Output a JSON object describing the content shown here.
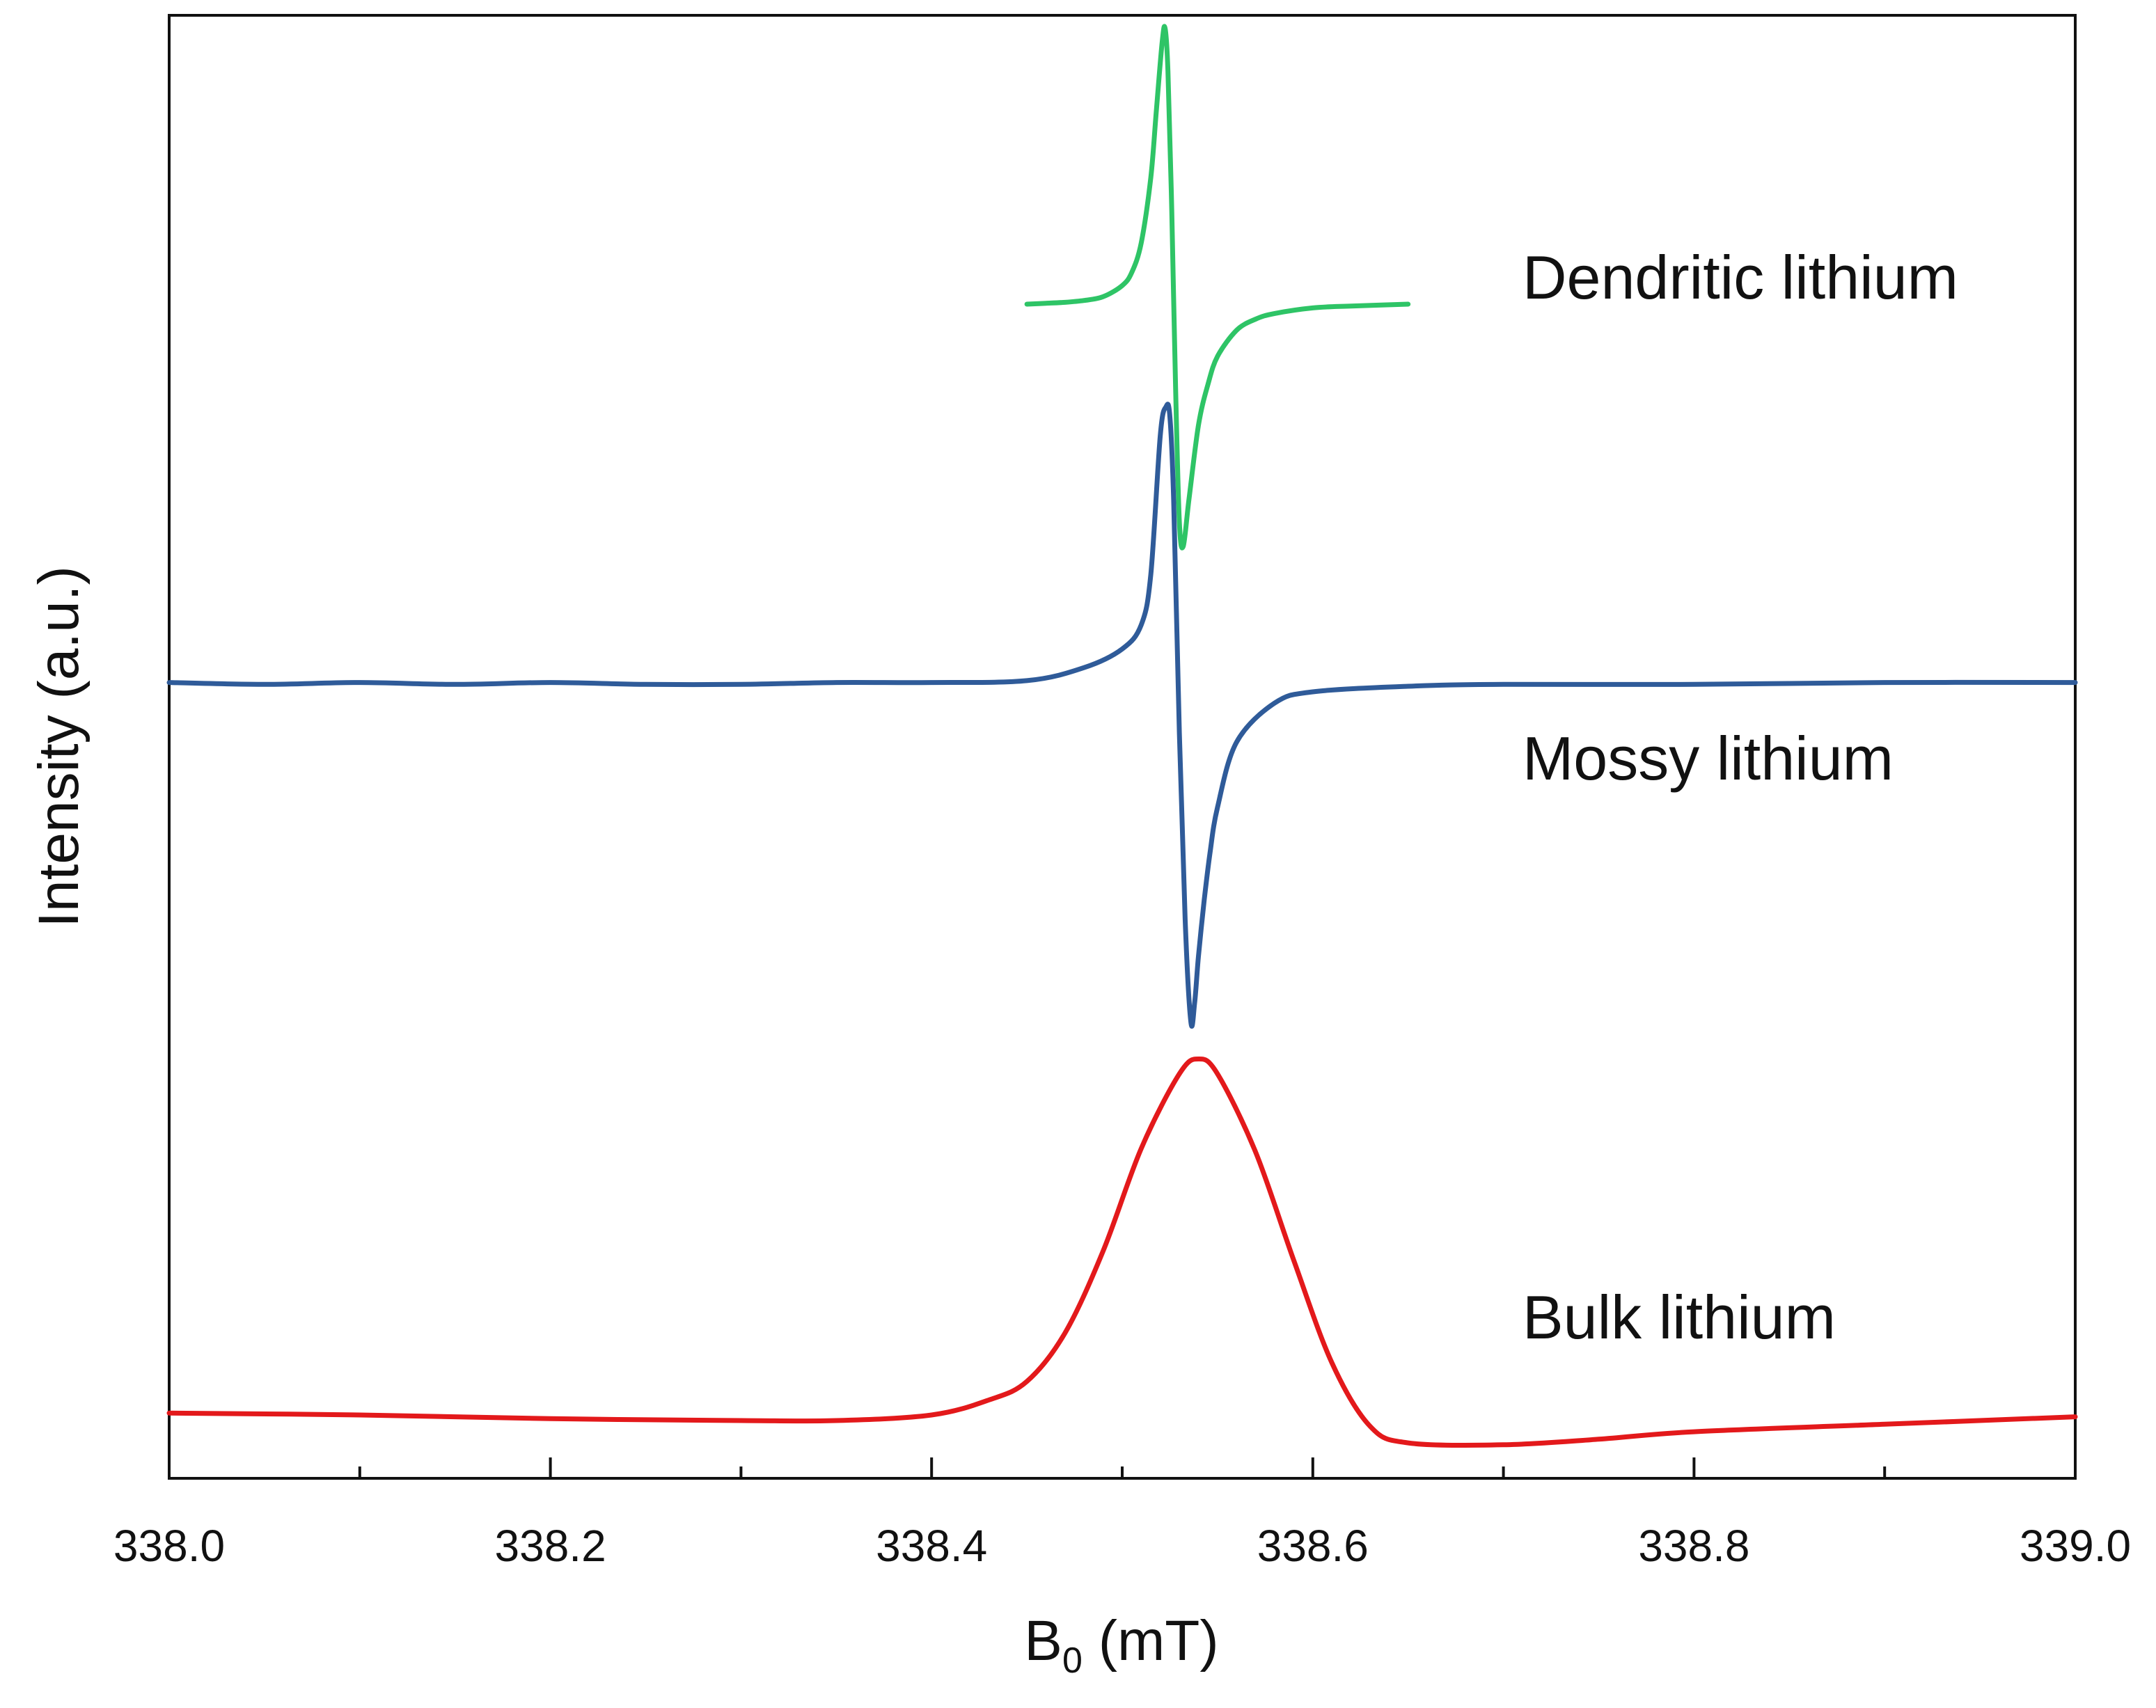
{
  "chart_data": {
    "type": "line",
    "title": "",
    "xlabel": "B",
    "xlabel_subscript": "0",
    "xlabel_unit": " (mT)",
    "ylabel": "Intensity (a.u.)",
    "xlim": [
      338.0,
      339.0
    ],
    "ylim": [
      -4.3,
      3.55
    ],
    "grid": false,
    "legend": "none",
    "yticks_visible": false,
    "x_major_ticks": [
      338.0,
      338.2,
      338.4,
      338.6,
      338.8,
      339.0
    ],
    "x_tick_labels": [
      "338.0",
      "338.2",
      "338.4",
      "338.6",
      "338.8",
      "339.0"
    ],
    "x_minor_ticks": [
      338.1,
      338.3,
      338.5,
      338.7,
      338.9
    ],
    "series": [
      {
        "name": "Dendritic lithium",
        "color": "#2ec466",
        "label_position": [
          338.71,
          2.03
        ],
        "x": [
          338.45,
          338.46,
          338.47,
          338.48,
          338.49,
          338.5,
          338.505,
          338.51,
          338.515,
          338.518,
          338.521,
          338.5225,
          338.524,
          338.526,
          338.528,
          338.53,
          338.532,
          338.535,
          338.54,
          338.545,
          338.55,
          338.56,
          338.57,
          338.58,
          338.6,
          338.62,
          338.65
        ],
        "y": [
          2.0,
          2.005,
          2.01,
          2.02,
          2.04,
          2.1,
          2.17,
          2.33,
          2.68,
          3.05,
          3.41,
          3.48,
          3.25,
          2.5,
          1.55,
          0.83,
          0.7,
          0.95,
          1.35,
          1.57,
          1.72,
          1.86,
          1.92,
          1.95,
          1.98,
          1.99,
          2.0
        ]
      },
      {
        "name": "Mossy lithium",
        "color": "#2f5b99",
        "label_position": [
          338.71,
          -0.55
        ],
        "x": [
          338.0,
          338.05,
          338.1,
          338.15,
          338.2,
          338.25,
          338.3,
          338.35,
          338.4,
          338.45,
          338.48,
          338.5,
          338.51,
          338.515,
          338.52,
          338.523,
          338.525,
          338.527,
          338.53,
          338.533,
          338.536,
          338.538,
          338.54,
          338.543,
          338.546,
          338.55,
          338.56,
          338.58,
          338.6,
          338.65,
          338.7,
          338.8,
          338.9,
          339.0
        ],
        "y": [
          -0.03,
          -0.04,
          -0.03,
          -0.04,
          -0.03,
          -0.04,
          -0.04,
          -0.03,
          -0.03,
          -0.02,
          0.05,
          0.15,
          0.28,
          0.55,
          1.3,
          1.45,
          1.4,
          0.95,
          -0.3,
          -1.3,
          -1.85,
          -1.75,
          -1.5,
          -1.2,
          -0.95,
          -0.7,
          -0.35,
          -0.14,
          -0.08,
          -0.05,
          -0.04,
          -0.04,
          -0.03,
          -0.03
        ]
      },
      {
        "name": "Bulk lithium",
        "color": "#e3191b",
        "label_position": [
          338.71,
          -3.55
        ],
        "x": [
          338.0,
          338.1,
          338.2,
          338.3,
          338.35,
          338.4,
          338.43,
          338.45,
          338.47,
          338.49,
          338.51,
          338.53,
          338.54,
          338.55,
          338.57,
          338.59,
          338.61,
          338.63,
          338.65,
          338.7,
          338.75,
          338.8,
          338.9,
          339.0
        ],
        "y": [
          -3.95,
          -3.96,
          -3.98,
          -3.99,
          -3.99,
          -3.96,
          -3.88,
          -3.78,
          -3.52,
          -3.08,
          -2.53,
          -2.13,
          -2.05,
          -2.13,
          -2.55,
          -3.13,
          -3.68,
          -4.02,
          -4.11,
          -4.12,
          -4.09,
          -4.05,
          -4.01,
          -3.97
        ]
      }
    ]
  }
}
